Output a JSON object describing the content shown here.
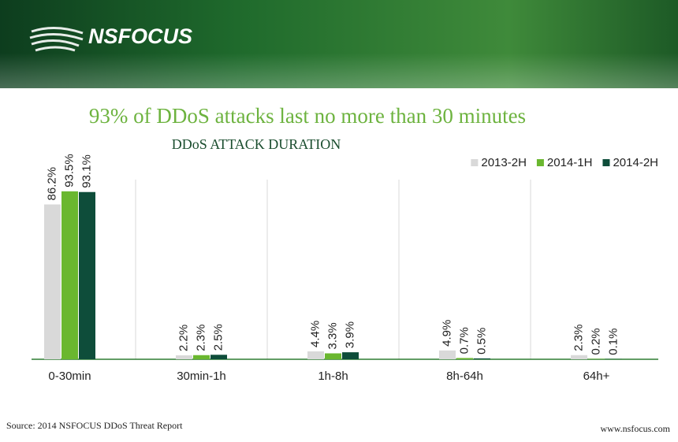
{
  "logo": "NSFOCUS",
  "chart_data": {
    "type": "bar",
    "title": "93% of DDoS attacks last no more than 30 minutes",
    "subtitle": "DDoS ATTACK DURATION",
    "categories": [
      "0-30min",
      "30min-1h",
      "1h-8h",
      "8h-64h",
      "64h+"
    ],
    "series": [
      {
        "name": "2013-2H",
        "color": "#d9d9d9",
        "values": [
          86.2,
          2.2,
          4.4,
          4.9,
          2.3
        ],
        "value_labels": [
          "86.2%",
          "2.2%",
          "4.4%",
          "4.9%",
          "2.3%"
        ]
      },
      {
        "name": "2014-1H",
        "color": "#6ab72f",
        "values": [
          93.5,
          2.3,
          3.3,
          0.7,
          0.2
        ],
        "value_labels": [
          "93.5%",
          "2.3%",
          "3.3%",
          "0.7%",
          "0.2%"
        ]
      },
      {
        "name": "2014-2H",
        "color": "#0e4d3a",
        "values": [
          93.1,
          2.5,
          3.9,
          0.5,
          0.1
        ],
        "value_labels": [
          "93.1%",
          "2.5%",
          "3.9%",
          "0.5%",
          "0.1%"
        ]
      }
    ],
    "legend": "top-right"
  },
  "source": "Source: 2014 NSFOCUS DDoS Threat Report",
  "website": "www.nsfocus.com"
}
